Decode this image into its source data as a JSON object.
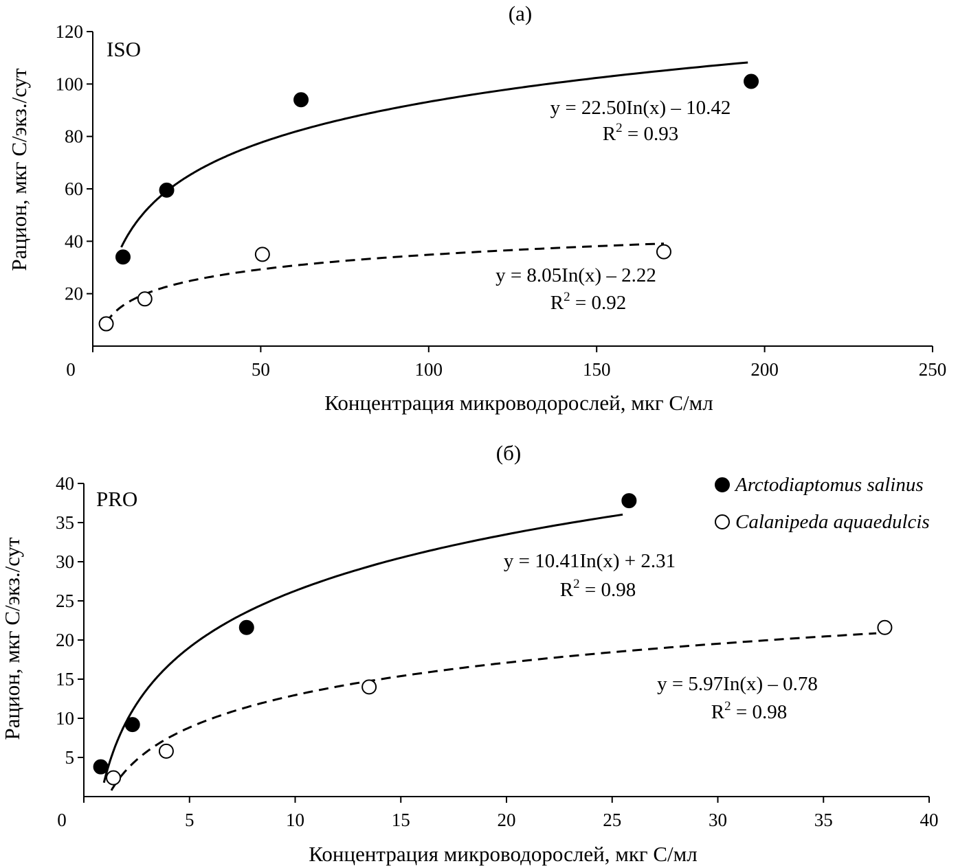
{
  "chart_data": [
    {
      "type": "scatter",
      "panel_label": "(а)",
      "tag": "ISO",
      "xlabel": "Концентрация микроводорослей, мкг С/мл",
      "ylabel": "Рацион, мкг С/экз./сут",
      "xlim": [
        0,
        250
      ],
      "ylim": [
        0,
        120
      ],
      "xticks": [
        "0",
        "50",
        "100",
        "150",
        "200",
        "250"
      ],
      "yticks": [
        "20",
        "40",
        "60",
        "80",
        "100",
        "120"
      ],
      "series": [
        {
          "name": "Arctodiaptomus salinus",
          "marker": "filled",
          "x": [
            9,
            22,
            62,
            196
          ],
          "y": [
            34,
            59.5,
            94,
            101
          ],
          "fit": {
            "a": 22.5,
            "b": -10.42,
            "x_from": 8.5,
            "x_to": 195,
            "style": "solid"
          },
          "equation": "y = 22.50In(x) – 10.42",
          "r2_prefix": "R",
          "r2_sup": "2",
          "r2_value": " = 0.93"
        },
        {
          "name": "Calanipeda aquaedulcis",
          "marker": "open",
          "x": [
            4,
            15.5,
            50.5,
            170
          ],
          "y": [
            8.5,
            18,
            35,
            36
          ],
          "fit": {
            "a": 8.05,
            "b": -2.22,
            "x_from": 4,
            "x_to": 170,
            "style": "dashed"
          },
          "equation": "y = 8.05In(x) – 2.22",
          "r2_prefix": "R",
          "r2_sup": "2",
          "r2_value": " = 0.92"
        }
      ]
    },
    {
      "type": "scatter",
      "panel_label": "(б)",
      "tag": "PRO",
      "xlabel": "Концентрация микроводорослей, мкг С/мл",
      "ylabel": "Рацион, мкг С/экз./сут",
      "xlim": [
        0,
        40
      ],
      "ylim": [
        0,
        40
      ],
      "xticks": [
        "0",
        "5",
        "10",
        "15",
        "20",
        "25",
        "30",
        "35",
        "40"
      ],
      "yticks": [
        "5",
        "10",
        "15",
        "20",
        "25",
        "30",
        "35",
        "40"
      ],
      "legend": [
        "Arctodiaptomus salinus",
        "Calanipeda aquaedulcis"
      ],
      "series": [
        {
          "name": "Arctodiaptomus salinus",
          "marker": "filled",
          "x": [
            0.8,
            2.3,
            7.7,
            25.8
          ],
          "y": [
            3.8,
            9.2,
            21.6,
            37.8
          ],
          "fit": {
            "a": 10.41,
            "b": 2.31,
            "x_from": 0.95,
            "x_to": 25.5,
            "style": "solid"
          },
          "equation": "y = 10.41In(x) + 2.31",
          "r2_prefix": "R",
          "r2_sup": "2",
          "r2_value": " = 0.98"
        },
        {
          "name": "Calanipeda aquaedulcis",
          "marker": "open",
          "x": [
            1.4,
            3.9,
            13.5,
            37.9
          ],
          "y": [
            2.4,
            5.8,
            14,
            21.6
          ],
          "fit": {
            "a": 5.97,
            "b": -0.78,
            "x_from": 1.3,
            "x_to": 37.5,
            "style": "dashed"
          },
          "equation": "y = 5.97In(x) – 0.78",
          "r2_prefix": "R",
          "r2_sup": "2",
          "r2_value": " = 0.98"
        }
      ]
    }
  ]
}
